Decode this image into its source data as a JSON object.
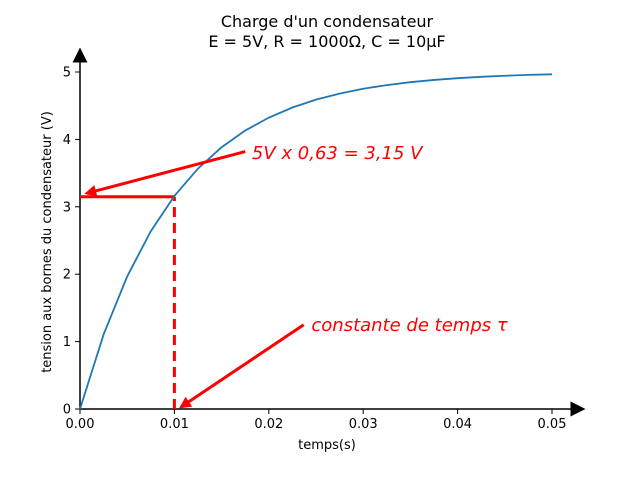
{
  "chart_data": {
    "type": "line",
    "title": [
      "Charge d'un condensateur",
      "E = 5V, R = 1000Ω, C = 10µF"
    ],
    "xlabel": "temps(s)",
    "ylabel": "tension aux bornes du condensateur (V)",
    "xlim": [
      0,
      0.05
    ],
    "ylim": [
      0,
      5
    ],
    "xticks": [
      0.0,
      0.01,
      0.02,
      0.03,
      0.04,
      0.05
    ],
    "xtick_labels": [
      "0.00",
      "0.01",
      "0.02",
      "0.03",
      "0.04",
      "0.05"
    ],
    "yticks": [
      0,
      1,
      2,
      3,
      4,
      5
    ],
    "ytick_labels": [
      "0",
      "1",
      "2",
      "3",
      "4",
      "5"
    ],
    "grid": false,
    "series": [
      {
        "color": "#1f77b4",
        "x": [
          0,
          0.0025,
          0.005,
          0.0075,
          0.01,
          0.0125,
          0.015,
          0.0175,
          0.02,
          0.0225,
          0.025,
          0.0275,
          0.03,
          0.0325,
          0.035,
          0.0375,
          0.04,
          0.0425,
          0.045,
          0.0475,
          0.05
        ],
        "y": [
          0,
          1.106,
          1.967,
          2.638,
          3.161,
          3.567,
          3.884,
          4.131,
          4.323,
          4.473,
          4.59,
          4.68,
          4.751,
          4.806,
          4.849,
          4.882,
          4.908,
          4.929,
          4.944,
          4.957,
          4.966
        ]
      }
    ],
    "annotations": [
      {
        "text": "5V x 0,63 = 3,15 V",
        "color": "#ff0000",
        "text_pos": [
          0.018,
          3.8
        ],
        "arrow_tail": [
          0.0175,
          3.82
        ],
        "arrow_head": [
          0.0007,
          3.2
        ]
      },
      {
        "text": "constante de temps τ",
        "color": "#ff0000",
        "text_pos": [
          0.0243,
          1.25
        ],
        "arrow_tail": [
          0.0237,
          1.25
        ],
        "arrow_head": [
          0.0107,
          0.03
        ]
      }
    ],
    "guides": [
      {
        "kind": "horizontal",
        "style": "solid",
        "color": "#ff0000",
        "y": 3.15,
        "x_from": 0,
        "x_to": 0.01
      },
      {
        "kind": "vertical",
        "style": "dashed",
        "color": "#ff0000",
        "x": 0.01,
        "y_from": 0,
        "y_to": 3.15
      }
    ]
  }
}
